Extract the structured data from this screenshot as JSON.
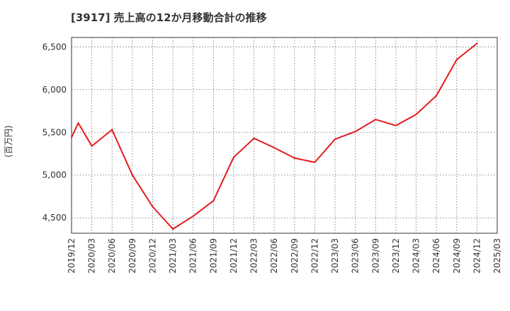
{
  "chart_data": {
    "type": "line",
    "title": "[3917]  売上高の12か月移動合計の推移",
    "ylabel": "(百万円)",
    "xlabel": "",
    "ylim": [
      4320,
      6610
    ],
    "y_ticks": [
      4500,
      5000,
      5500,
      6000,
      6500
    ],
    "y_tick_labels": [
      "4,500",
      "5,000",
      "5,500",
      "6,000",
      "6,500"
    ],
    "x_tick_labels": [
      "2019/12",
      "2020/03",
      "2020/06",
      "2020/09",
      "2020/12",
      "2021/03",
      "2021/06",
      "2021/09",
      "2021/12",
      "2022/03",
      "2022/06",
      "2022/09",
      "2022/12",
      "2023/03",
      "2023/06",
      "2023/09",
      "2023/12",
      "2024/03",
      "2024/06",
      "2024/09",
      "2024/12",
      "2025/03"
    ],
    "x_range_months": [
      0,
      63
    ],
    "grid": true,
    "series": [
      {
        "name": "売上高の12か月移動合計",
        "color": "#e31a1c",
        "points": [
          {
            "m": 0,
            "v": 5440
          },
          {
            "m": 1,
            "v": 5610
          },
          {
            "m": 3,
            "v": 5340
          },
          {
            "m": 6,
            "v": 5530
          },
          {
            "m": 9,
            "v": 5000
          },
          {
            "m": 12,
            "v": 4630
          },
          {
            "m": 15,
            "v": 4370
          },
          {
            "m": 18,
            "v": 4520
          },
          {
            "m": 21,
            "v": 4700
          },
          {
            "m": 24,
            "v": 5210
          },
          {
            "m": 27,
            "v": 5430
          },
          {
            "m": 30,
            "v": 5320
          },
          {
            "m": 33,
            "v": 5200
          },
          {
            "m": 36,
            "v": 5150
          },
          {
            "m": 39,
            "v": 5420
          },
          {
            "m": 42,
            "v": 5510
          },
          {
            "m": 45,
            "v": 5650
          },
          {
            "m": 48,
            "v": 5580
          },
          {
            "m": 51,
            "v": 5710
          },
          {
            "m": 54,
            "v": 5930
          },
          {
            "m": 57,
            "v": 6350
          },
          {
            "m": 60,
            "v": 6540
          }
        ]
      }
    ]
  }
}
